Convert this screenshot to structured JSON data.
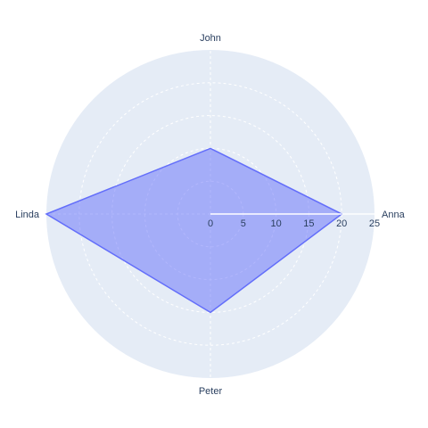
{
  "chart_data": {
    "type": "radar",
    "categories": [
      "Anna",
      "John",
      "Linda",
      "Peter"
    ],
    "values": [
      20,
      10,
      25,
      15
    ],
    "radial_range": [
      0,
      25
    ],
    "radial_ticks": [
      0,
      5,
      10,
      15,
      20,
      25
    ],
    "radial_tick_labels": [
      "0",
      "5",
      "10",
      "15",
      "20",
      "25"
    ],
    "angular_direction": "counterclockwise",
    "angular_start": "right",
    "grid": true,
    "legend": false,
    "colors": {
      "polar_bg": "#e5ecf6",
      "grid": "#ffffff",
      "fill": "#636efa",
      "fill_opacity": 0.5,
      "line": "#636efa",
      "text": "#2a3f5f"
    }
  }
}
